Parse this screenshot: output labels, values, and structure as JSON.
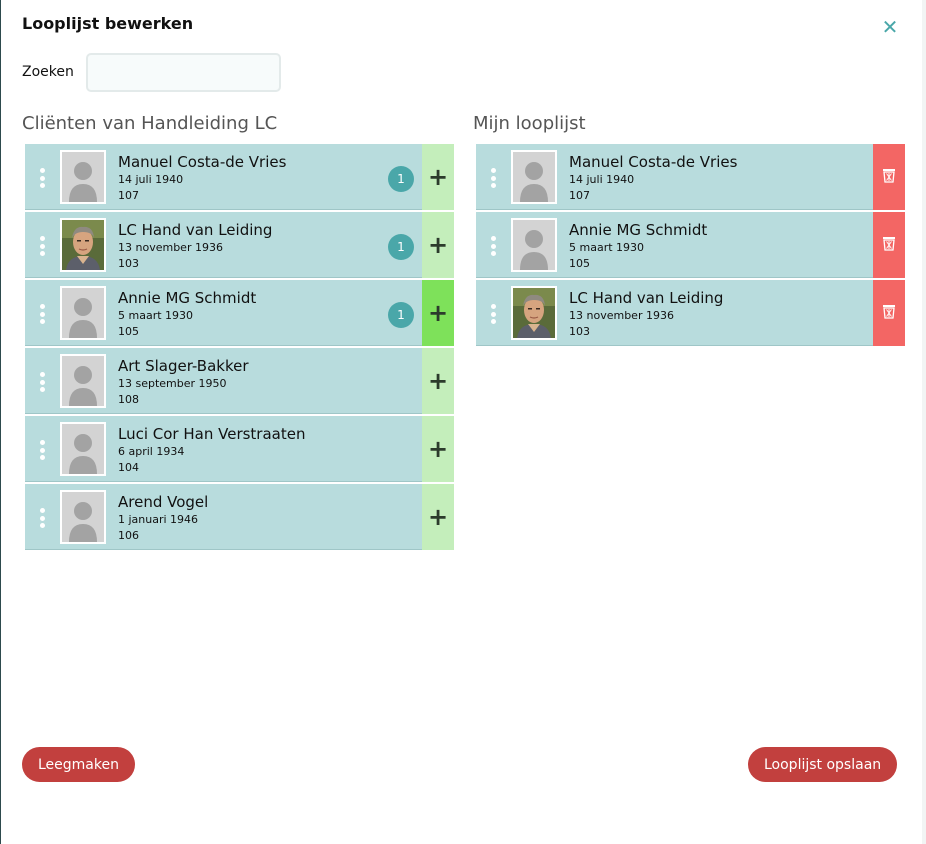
{
  "modal": {
    "title": "Looplijst bewerken",
    "close_icon": "close-icon"
  },
  "search": {
    "label": "Zoeken",
    "value": "",
    "placeholder": ""
  },
  "left": {
    "title": "Cliënten van Handleiding LC",
    "items": [
      {
        "name": "Manuel Costa-de Vries",
        "dob": "14 juli 1940",
        "room": "107",
        "photo": "placeholder",
        "count": "1",
        "add_active": false
      },
      {
        "name": "LC Hand van Leiding",
        "dob": "13 november 1936",
        "room": "103",
        "photo": "portrait",
        "count": "1",
        "add_active": false
      },
      {
        "name": "Annie MG Schmidt",
        "dob": "5 maart 1930",
        "room": "105",
        "photo": "placeholder",
        "count": "1",
        "add_active": true
      },
      {
        "name": "Art Slager-Bakker",
        "dob": "13 september 1950",
        "room": "108",
        "photo": "placeholder",
        "count": "",
        "add_active": false
      },
      {
        "name": "Luci Cor Han Verstraaten",
        "dob": "6 april 1934",
        "room": "104",
        "photo": "placeholder",
        "count": "",
        "add_active": false
      },
      {
        "name": "Arend Vogel",
        "dob": "1 januari 1946",
        "room": "106",
        "photo": "placeholder",
        "count": "",
        "add_active": false
      }
    ]
  },
  "right": {
    "title": "Mijn looplijst",
    "items": [
      {
        "name": "Manuel Costa-de Vries",
        "dob": "14 juli 1940",
        "room": "107",
        "photo": "placeholder"
      },
      {
        "name": "Annie MG Schmidt",
        "dob": "5 maart 1930",
        "room": "105",
        "photo": "placeholder"
      },
      {
        "name": "LC Hand van Leiding",
        "dob": "13 november 1936",
        "room": "103",
        "photo": "portrait"
      }
    ]
  },
  "footer": {
    "clear_label": "Leegmaken",
    "save_label": "Looplijst opslaan"
  },
  "colors": {
    "accent": "#4aa7a9",
    "row": "#b8dcdd",
    "add": "#c4eebb",
    "add_active": "#7ee15a",
    "delete": "#f36664",
    "button": "#c2403e"
  }
}
